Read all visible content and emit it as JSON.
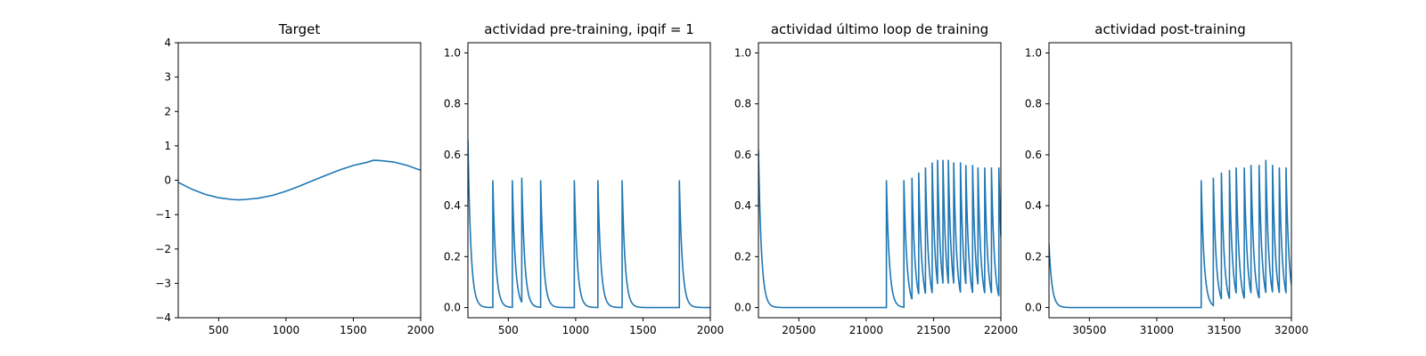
{
  "chart_data": [
    {
      "type": "line",
      "title": "Target",
      "xlabel": "",
      "ylabel": "",
      "xlim": [
        200,
        2000
      ],
      "ylim": [
        -4,
        4
      ],
      "xticks": [
        500,
        1000,
        1500,
        2000
      ],
      "yticks": [
        -4,
        -3,
        -2,
        -1,
        0,
        1,
        2,
        3,
        4
      ],
      "color": "#1f77b4",
      "series": [
        {
          "x": [
            200,
            300,
            400,
            500,
            600,
            650,
            700,
            800,
            900,
            1000,
            1100,
            1200,
            1300,
            1400,
            1500,
            1600,
            1650,
            1700,
            1800,
            1900,
            2000
          ],
          "y": [
            -0.06,
            -0.26,
            -0.41,
            -0.51,
            -0.56,
            -0.57,
            -0.56,
            -0.52,
            -0.44,
            -0.32,
            -0.17,
            -0.01,
            0.15,
            0.3,
            0.43,
            0.52,
            0.58,
            0.57,
            0.53,
            0.43,
            0.29
          ]
        }
      ]
    },
    {
      "type": "line",
      "title": "actividad pre-training, ipqif = 1",
      "xlabel": "",
      "ylabel": "",
      "xlim": [
        200,
        2000
      ],
      "ylim": [
        -0.04,
        1.04
      ],
      "xticks": [
        500,
        1000,
        1500,
        2000
      ],
      "yticks": [
        0.0,
        0.2,
        0.4,
        0.6,
        0.8,
        1.0
      ],
      "color": "#1f77b4",
      "series": [
        {
          "start": 200,
          "start_value": 0.66,
          "end": 2000,
          "spikes": [
            {
              "x": 385,
              "y": 0.5
            },
            {
              "x": 530,
              "y": 0.5
            },
            {
              "x": 600,
              "y": 0.51
            },
            {
              "x": 740,
              "y": 0.5
            },
            {
              "x": 990,
              "y": 0.5
            },
            {
              "x": 1165,
              "y": 0.5
            },
            {
              "x": 1345,
              "y": 0.5
            },
            {
              "x": 1770,
              "y": 0.5
            }
          ]
        }
      ]
    },
    {
      "type": "line",
      "title": "actividad último loop de training",
      "xlabel": "",
      "ylabel": "",
      "xlim": [
        20200,
        22000
      ],
      "ylim": [
        -0.04,
        1.04
      ],
      "xticks": [
        20500,
        21000,
        21500,
        22000
      ],
      "yticks": [
        0.0,
        0.2,
        0.4,
        0.6,
        0.8,
        1.0
      ],
      "color": "#1f77b4",
      "series": [
        {
          "start": 20200,
          "start_value": 0.62,
          "end": 22000,
          "spikes": [
            {
              "x": 21150,
              "y": 0.5
            },
            {
              "x": 21280,
              "y": 0.5
            },
            {
              "x": 21340,
              "y": 0.51
            },
            {
              "x": 21390,
              "y": 0.53
            },
            {
              "x": 21440,
              "y": 0.55
            },
            {
              "x": 21490,
              "y": 0.57
            },
            {
              "x": 21530,
              "y": 0.58
            },
            {
              "x": 21570,
              "y": 0.58
            },
            {
              "x": 21610,
              "y": 0.58
            },
            {
              "x": 21650,
              "y": 0.57
            },
            {
              "x": 21700,
              "y": 0.57
            },
            {
              "x": 21740,
              "y": 0.56
            },
            {
              "x": 21790,
              "y": 0.56
            },
            {
              "x": 21830,
              "y": 0.55
            },
            {
              "x": 21880,
              "y": 0.55
            },
            {
              "x": 21930,
              "y": 0.55
            },
            {
              "x": 21985,
              "y": 0.55
            }
          ]
        }
      ]
    },
    {
      "type": "line",
      "title": "actividad post-training",
      "xlabel": "",
      "ylabel": "",
      "xlim": [
        30200,
        32000
      ],
      "ylim": [
        -0.04,
        1.04
      ],
      "xticks": [
        30500,
        31000,
        31500,
        32000
      ],
      "yticks": [
        0.0,
        0.2,
        0.4,
        0.6,
        0.8,
        1.0
      ],
      "color": "#1f77b4",
      "series": [
        {
          "start": 30200,
          "start_value": 0.25,
          "end": 32000,
          "spikes": [
            {
              "x": 31330,
              "y": 0.5
            },
            {
              "x": 31420,
              "y": 0.51
            },
            {
              "x": 31480,
              "y": 0.53
            },
            {
              "x": 31540,
              "y": 0.54
            },
            {
              "x": 31590,
              "y": 0.55
            },
            {
              "x": 31650,
              "y": 0.55
            },
            {
              "x": 31700,
              "y": 0.56
            },
            {
              "x": 31760,
              "y": 0.56
            },
            {
              "x": 31810,
              "y": 0.58
            },
            {
              "x": 31860,
              "y": 0.56
            },
            {
              "x": 31910,
              "y": 0.55
            },
            {
              "x": 31960,
              "y": 0.55
            }
          ]
        }
      ]
    }
  ]
}
